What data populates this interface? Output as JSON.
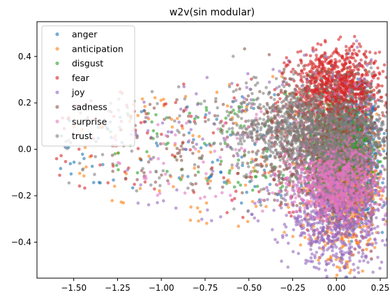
{
  "chart_data": {
    "type": "scatter",
    "title": "w2v(sin modular)",
    "xlabel": "",
    "ylabel": "",
    "xlim": [
      -1.71,
      0.29
    ],
    "ylim": [
      -0.555,
      0.55
    ],
    "xticks": [
      -1.5,
      -1.25,
      -1.0,
      -0.75,
      -0.5,
      -0.25,
      0.0,
      0.25
    ],
    "xtick_labels": [
      "−1.50",
      "−1.25",
      "−1.00",
      "−0.75",
      "−0.50",
      "−0.25",
      "0.00",
      "0.25"
    ],
    "yticks": [
      -0.4,
      -0.2,
      0.0,
      0.2,
      0.4
    ],
    "ytick_labels": [
      "−0.4",
      "−0.2",
      "0.0",
      "0.2",
      "0.4"
    ],
    "grid": false,
    "legend_position": "upper-left",
    "series": [
      {
        "name": "anger",
        "color": "#1f77b4",
        "cluster": {
          "cx": 0.1,
          "cy": -0.02,
          "rx": 0.12,
          "ry": 0.22
        },
        "scatter": {
          "xmin": -1.6,
          "xmax": 0.2,
          "ymin": -0.3,
          "ymax": 0.3
        }
      },
      {
        "name": "anticipation",
        "color": "#ff7f0e",
        "cluster": {
          "cx": 0.05,
          "cy": -0.15,
          "rx": 0.15,
          "ry": 0.25
        },
        "scatter": {
          "xmin": -1.5,
          "xmax": 0.2,
          "ymin": -0.45,
          "ymax": 0.4
        }
      },
      {
        "name": "disgust",
        "color": "#2ca02c",
        "cluster": {
          "cx": 0.02,
          "cy": 0.0,
          "rx": 0.15,
          "ry": 0.15
        },
        "scatter": {
          "xmin": -1.3,
          "xmax": 0.2,
          "ymin": -0.25,
          "ymax": 0.3
        }
      },
      {
        "name": "fear",
        "color": "#d62728",
        "cluster": {
          "cx": 0.0,
          "cy": 0.27,
          "rx": 0.21,
          "ry": 0.13
        },
        "scatter": {
          "xmin": -1.6,
          "xmax": 0.15,
          "ymin": -0.4,
          "ymax": 0.44
        }
      },
      {
        "name": "joy",
        "color": "#9467bd",
        "cluster": {
          "cx": 0.0,
          "cy": -0.27,
          "rx": 0.22,
          "ry": 0.2
        },
        "scatter": {
          "xmin": -1.2,
          "xmax": 0.2,
          "ymin": -0.5,
          "ymax": 0.5
        }
      },
      {
        "name": "sadness",
        "color": "#8c564b",
        "cluster": {
          "cx": -0.1,
          "cy": 0.05,
          "rx": 0.3,
          "ry": 0.2
        },
        "scatter": {
          "xmin": -1.3,
          "xmax": 0.2,
          "ymin": -0.3,
          "ymax": 0.35
        }
      },
      {
        "name": "surprise",
        "color": "#e377c2",
        "cluster": {
          "cx": 0.0,
          "cy": -0.12,
          "rx": 0.2,
          "ry": 0.15
        },
        "scatter": {
          "xmin": -1.3,
          "xmax": 0.2,
          "ymin": -0.35,
          "ymax": 0.3
        }
      },
      {
        "name": "trust",
        "color": "#7f7f7f",
        "cluster": {
          "cx": -0.15,
          "cy": 0.08,
          "rx": 0.37,
          "ry": 0.15
        },
        "scatter": {
          "xmin": -1.55,
          "xmax": 0.2,
          "ymin": -0.35,
          "ymax": 0.4
        }
      }
    ]
  }
}
